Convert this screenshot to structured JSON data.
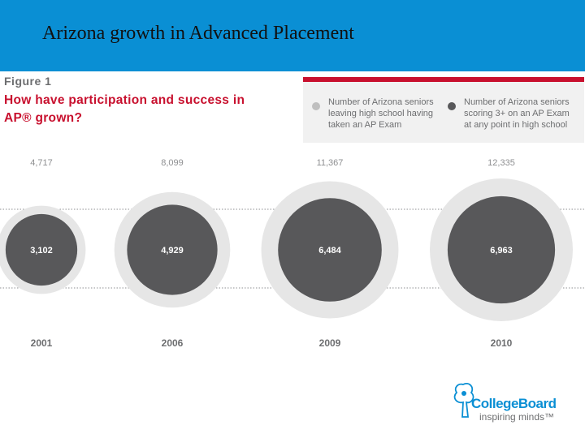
{
  "slide": {
    "title": "Arizona growth in Advanced Placement",
    "header_color": "#0a8fd4"
  },
  "figure": {
    "label": "Figure 1",
    "title": "How have participation and success in AP® grown?"
  },
  "chart_data": {
    "type": "bubble",
    "categories": [
      "2001",
      "2006",
      "2009",
      "2010"
    ],
    "series": [
      {
        "name": "Number of Arizona seniors leaving high school having taken an AP Exam",
        "values": [
          4717,
          8099,
          11367,
          12335
        ],
        "labels": [
          "4,717",
          "8,099",
          "11,367",
          "12,335"
        ],
        "color": "#e6e6e6"
      },
      {
        "name": "Number of Arizona seniors scoring 3+ on an AP Exam at any point in high school",
        "values": [
          3102,
          4929,
          6484,
          6963
        ],
        "labels": [
          "3,102",
          "4,929",
          "6,484",
          "6,963"
        ],
        "color": "#58585a"
      }
    ],
    "legend_position": "top-right",
    "accent_color": "#c8102e"
  },
  "logo": {
    "name": "CollegeBoard",
    "tagline": "inspiring minds™",
    "icon": "acorn-tree-icon"
  }
}
